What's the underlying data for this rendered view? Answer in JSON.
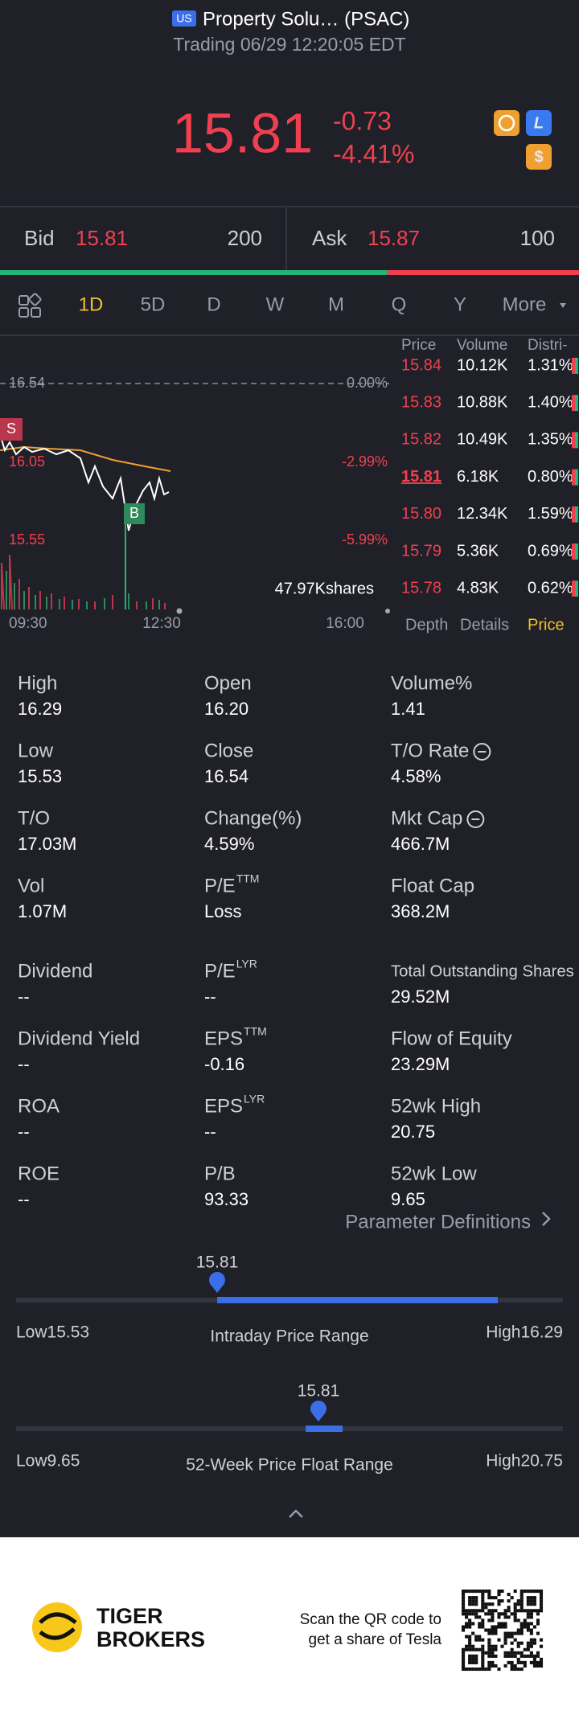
{
  "header": {
    "market": "US",
    "name": "Property Solu… (PSAC)",
    "status": "Trading 06/29 12:20:05 EDT"
  },
  "quote": {
    "price": "15.81",
    "change": "-0.73",
    "change_pct": "-4.41%"
  },
  "bid": {
    "label": "Bid",
    "price": "15.81",
    "size": "200"
  },
  "ask": {
    "label": "Ask",
    "price": "15.87",
    "size": "100"
  },
  "tabs": {
    "items": [
      "1D",
      "5D",
      "D",
      "W",
      "M",
      "Q",
      "Y",
      "More"
    ],
    "selected": 0
  },
  "chart": {
    "labels": [
      "16.54",
      "0.00%",
      "16.05",
      "-2.99%",
      "15.55",
      "-5.99%"
    ],
    "volume": "47.97Kshares",
    "times": [
      "09:30",
      "12:30",
      "16:00"
    ],
    "markers": [
      "S",
      "B"
    ]
  },
  "orderbook": {
    "headers": [
      "Price",
      "Volume",
      "Distri-"
    ],
    "current": 3,
    "rows": [
      [
        "15.84",
        "10.12K",
        "1.31%"
      ],
      [
        "15.83",
        "10.88K",
        "1.40%"
      ],
      [
        "15.82",
        "10.49K",
        "1.35%"
      ],
      [
        "15.81",
        "6.18K",
        "0.80%"
      ],
      [
        "15.80",
        "12.34K",
        "1.59%"
      ],
      [
        "15.79",
        "5.36K",
        "0.69%"
      ],
      [
        "15.78",
        "4.83K",
        "0.62%"
      ]
    ],
    "tabs": [
      "Depth",
      "Details",
      "Price"
    ],
    "selected": 2
  },
  "stats": [
    {
      "label": "High",
      "value": "16.29"
    },
    {
      "label": "Open",
      "value": "16.20"
    },
    {
      "label": "Volume%",
      "value": "1.41"
    },
    {
      "label": "Low",
      "value": "15.53"
    },
    {
      "label": "Close",
      "value": "16.54"
    },
    {
      "label": "T/O Rate",
      "value": "4.58%",
      "info": true
    },
    {
      "label": "T/O",
      "value": "17.03M"
    },
    {
      "label": "Change(%)",
      "value": "4.59%"
    },
    {
      "label": "Mkt Cap",
      "value": "466.7M",
      "info": true
    },
    {
      "label": "Vol",
      "value": "1.07M"
    },
    {
      "label": "P/E",
      "sup": "TTM",
      "value": "Loss"
    },
    {
      "label": "Float Cap",
      "value": "368.2M"
    },
    {
      "label": "Dividend",
      "value": "--"
    },
    {
      "label": "P/E",
      "sup": "LYR",
      "value": "--"
    },
    {
      "label": "Total Outstanding Shares",
      "value": "29.52M"
    },
    {
      "label": "Dividend Yield",
      "value": "--"
    },
    {
      "label": "EPS",
      "sup": "TTM",
      "value": "-0.16"
    },
    {
      "label": "Flow of Equity",
      "value": "23.29M"
    },
    {
      "label": "ROA",
      "value": "--"
    },
    {
      "label": "EPS",
      "sup": "LYR",
      "value": "--"
    },
    {
      "label": "52wk High",
      "value": "20.75"
    },
    {
      "label": "ROE",
      "value": "--"
    },
    {
      "label": "P/B",
      "value": "93.33"
    },
    {
      "label": "52wk Low",
      "value": "9.65"
    }
  ],
  "param_link": "Parameter Definitions",
  "ranges": [
    {
      "current": "15.81",
      "low": "Low15.53",
      "title": "Intraday Price Range",
      "high": "High16.29"
    },
    {
      "current": "15.81",
      "low": "Low9.65",
      "title": "52-Week Price Float Range",
      "high": "High20.75"
    }
  ],
  "footer": {
    "brand": [
      "TIGER",
      "BROKERS"
    ],
    "qr_text": [
      "Scan the QR code to",
      "get a share of Tesla"
    ]
  }
}
